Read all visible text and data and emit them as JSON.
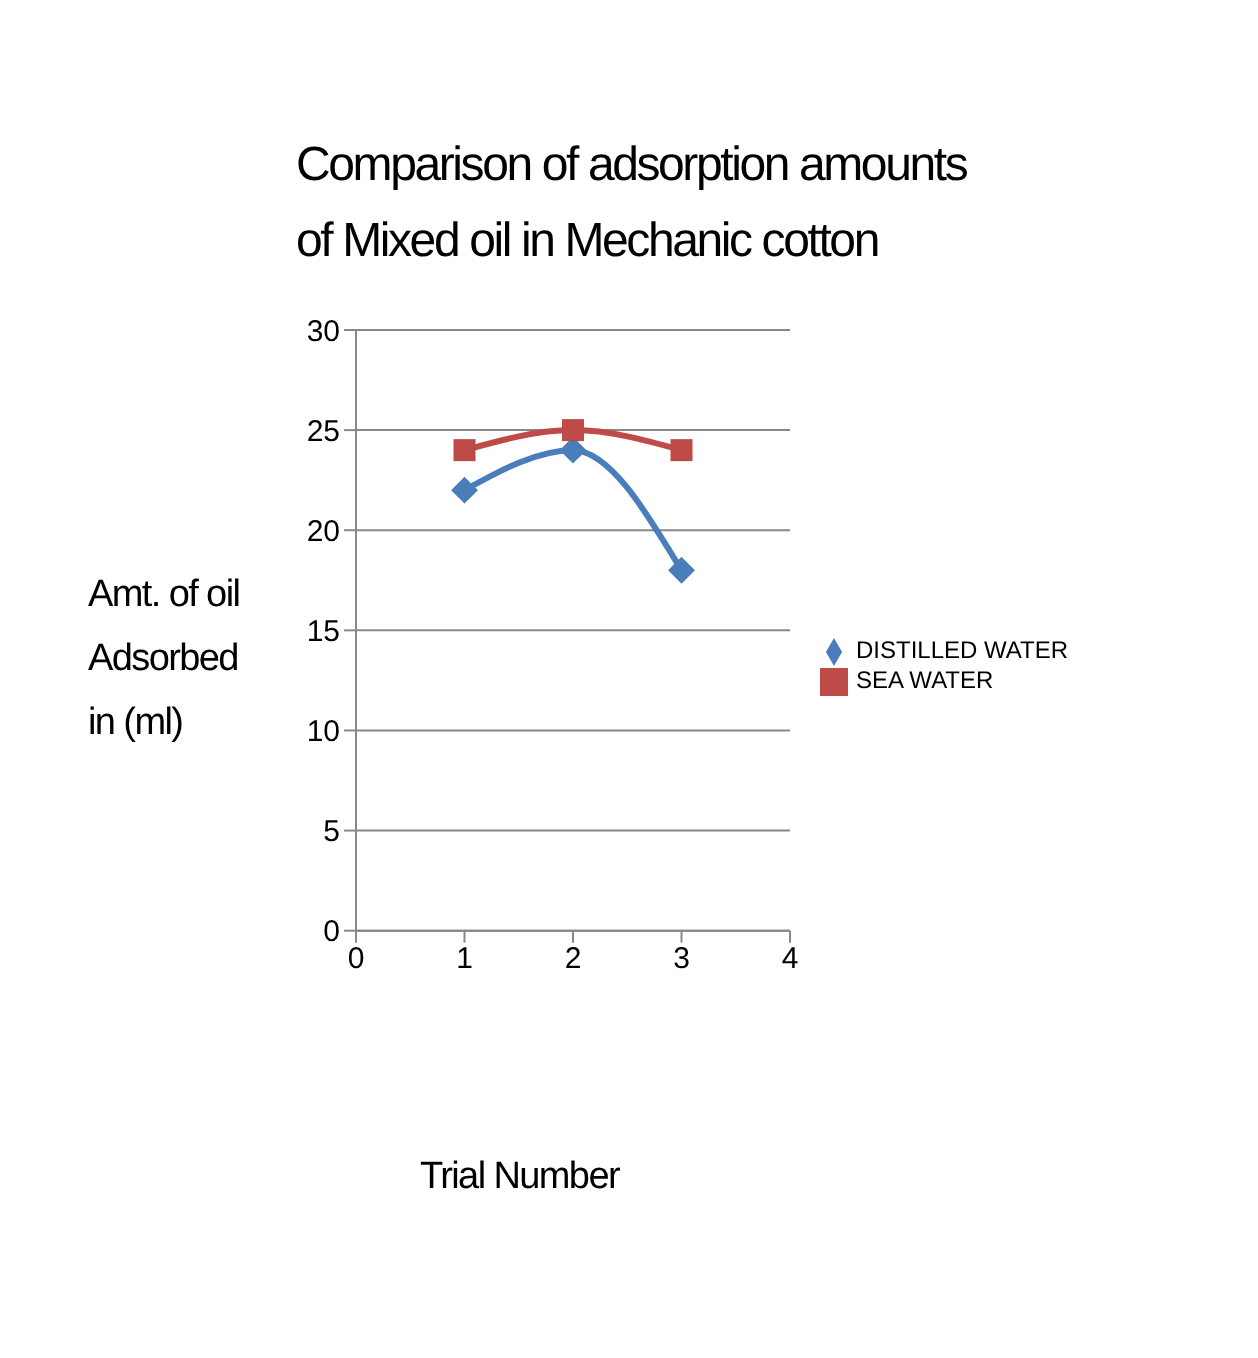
{
  "chart_data": {
    "type": "line",
    "title": "Comparison of adsorption amounts\nof Mixed oil in Mechanic cotton",
    "xlabel": "Trial Number",
    "ylabel": "Amt. of oil\nAdsorbed\nin (ml)",
    "x": [
      1,
      2,
      3
    ],
    "series": [
      {
        "name": "DISTILLED WATER",
        "color": "#4a7ebb",
        "values": [
          22,
          24,
          18
        ],
        "marker": "diamond"
      },
      {
        "name": "SEA WATER",
        "color": "#be4b48",
        "values": [
          24,
          25,
          24
        ],
        "marker": "square"
      }
    ],
    "xlim": [
      0,
      4
    ],
    "xticks": [
      0,
      1,
      2,
      3,
      4
    ],
    "ylim": [
      0,
      30
    ],
    "yticks": [
      0,
      5,
      10,
      15,
      20,
      25,
      30
    ],
    "grid": "y",
    "legend": "right",
    "line_style": "solid"
  }
}
